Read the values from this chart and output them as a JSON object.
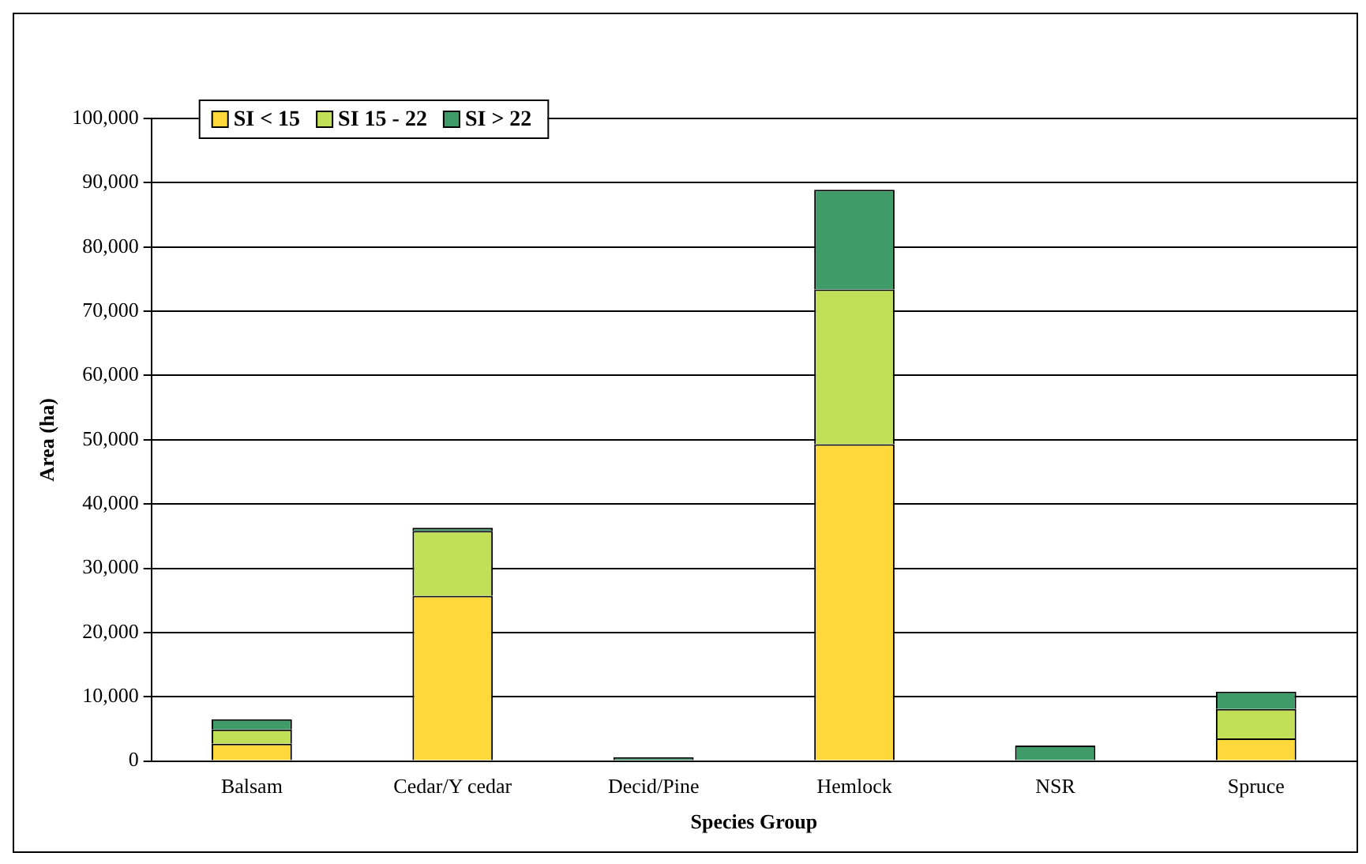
{
  "chart_data": {
    "type": "bar",
    "stacked": true,
    "xlabel": "Species Group",
    "ylabel": "Area (ha)",
    "categories": [
      "Balsam",
      "Cedar/Y cedar",
      "Decid/Pine",
      "Hemlock",
      "NSR",
      "Spruce"
    ],
    "series": [
      {
        "name": "SI < 15",
        "color": "#ffd83b",
        "values": [
          2700,
          25700,
          0,
          49300,
          0,
          3500
        ]
      },
      {
        "name": "SI 15 - 22",
        "color": "#c2df58",
        "values": [
          2200,
          10100,
          0,
          24100,
          0,
          4600
        ]
      },
      {
        "name": "SI > 22",
        "color": "#3f9c68",
        "values": [
          1600,
          500,
          600,
          15500,
          2400,
          2700
        ]
      }
    ],
    "ylim": [
      0,
      100000
    ],
    "yticks": [
      0,
      {
        "value": 10000,
        "label": "10,000"
      },
      {
        "value": 20000,
        "label": "20,000"
      },
      {
        "value": 30000,
        "label": "30,000"
      },
      {
        "value": 40000,
        "label": "40,000"
      },
      {
        "value": 50000,
        "label": "50,000"
      },
      {
        "value": 60000,
        "label": "60,000"
      },
      {
        "value": 70000,
        "label": "70,000"
      },
      {
        "value": 80000,
        "label": "80,000"
      },
      {
        "value": 90000,
        "label": "90,000"
      },
      {
        "value": 100000,
        "label": "100,000"
      }
    ],
    "grid": "y",
    "legend": "top left"
  }
}
